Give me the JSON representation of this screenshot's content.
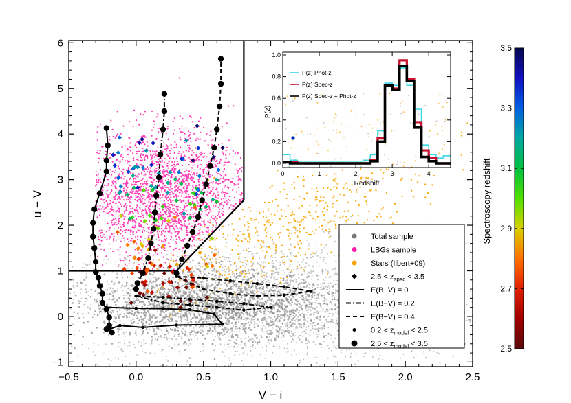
{
  "chart_data": {
    "type": "scatter",
    "main": {
      "xlabel": "V − i",
      "ylabel": "u − V",
      "xlim": [
        -0.5,
        2.5
      ],
      "ylim": [
        -1.1,
        6.05
      ],
      "xticks": [
        -0.5,
        0.0,
        0.5,
        1.0,
        1.5,
        2.0,
        2.5
      ],
      "xtick_labels": [
        "−0.5",
        "0.0",
        "0.5",
        "1.0",
        "1.5",
        "2.0",
        "2.5"
      ],
      "yticks": [
        -1,
        0,
        1,
        2,
        3,
        4,
        5,
        6
      ],
      "ytick_labels": [
        "−1",
        "0",
        "1",
        "2",
        "3",
        "4",
        "5",
        "6"
      ],
      "selection_box": [
        [
          -0.5,
          1.0
        ],
        [
          0.3,
          1.0
        ],
        [
          0.8,
          2.55
        ],
        [
          0.8,
          6.05
        ]
      ],
      "tracks": [
        {
          "name": "E(B−V) = 0",
          "style": "solid",
          "points": [
            [
              -0.22,
              -0.28
            ],
            [
              -0.18,
              -0.35
            ],
            [
              -0.2,
              -0.2
            ],
            [
              -0.2,
              -0.02
            ],
            [
              -0.22,
              0.16
            ],
            [
              -0.25,
              0.3
            ],
            [
              -0.25,
              0.5
            ],
            [
              -0.27,
              0.67
            ],
            [
              -0.28,
              0.85
            ],
            [
              -0.3,
              0.97
            ],
            [
              -0.3,
              1.2
            ],
            [
              -0.31,
              1.5
            ],
            [
              -0.32,
              1.75
            ],
            [
              -0.32,
              2.05
            ],
            [
              -0.31,
              2.35
            ],
            [
              -0.27,
              2.7
            ],
            [
              -0.22,
              3.18
            ],
            [
              -0.22,
              3.42
            ],
            [
              -0.21,
              3.75
            ],
            [
              -0.22,
              4.13
            ]
          ]
        },
        {
          "name": "E(B−V) = 0.2",
          "style": "dashdot",
          "points": [
            [
              0.0,
              0.6
            ],
            [
              0.01,
              0.73
            ],
            [
              0.05,
              0.95
            ],
            [
              0.09,
              1.28
            ],
            [
              0.11,
              1.6
            ],
            [
              0.13,
              1.92
            ],
            [
              0.14,
              2.28
            ],
            [
              0.15,
              2.65
            ],
            [
              0.17,
              3.05
            ],
            [
              0.18,
              3.55
            ],
            [
              0.2,
              4.1
            ],
            [
              0.21,
              4.5
            ],
            [
              0.21,
              4.88
            ]
          ]
        },
        {
          "name": "E(B−V) = 0.4",
          "style": "dashed",
          "points": [
            [
              0.3,
              0.95
            ],
            [
              0.34,
              1.25
            ],
            [
              0.38,
              1.55
            ],
            [
              0.42,
              1.85
            ],
            [
              0.46,
              2.18
            ],
            [
              0.49,
              2.55
            ],
            [
              0.52,
              2.9
            ],
            [
              0.55,
              3.3
            ],
            [
              0.58,
              3.7
            ],
            [
              0.6,
              4.1
            ],
            [
              0.62,
              4.6
            ],
            [
              0.63,
              5.1
            ],
            [
              0.63,
              5.65
            ]
          ]
        },
        {
          "name": "low-z tail (E=0)",
          "style": "solid",
          "points": [
            [
              -0.22,
              0.2
            ],
            [
              0.0,
              0.18
            ],
            [
              0.2,
              0.17
            ],
            [
              0.4,
              0.15
            ],
            [
              0.58,
              0.05
            ],
            [
              0.64,
              -0.17
            ],
            [
              0.3,
              -0.19
            ],
            [
              0.05,
              -0.24
            ],
            [
              -0.12,
              -0.2
            ],
            [
              -0.22,
              -0.3
            ]
          ]
        },
        {
          "name": "low-z tail (E=0.2)",
          "style": "dashdot",
          "points": [
            [
              0.0,
              0.45
            ],
            [
              0.2,
              0.42
            ],
            [
              0.4,
              0.38
            ],
            [
              0.6,
              0.33
            ],
            [
              0.8,
              0.28
            ],
            [
              1.0,
              0.2
            ],
            [
              0.8,
              0.14
            ],
            [
              0.6,
              0.2
            ],
            [
              0.4,
              0.25
            ],
            [
              0.2,
              0.3
            ],
            [
              0.0,
              0.45
            ]
          ]
        },
        {
          "name": "low-z tail (E=0.4)",
          "style": "dashed",
          "points": [
            [
              0.3,
              0.88
            ],
            [
              0.5,
              0.84
            ],
            [
              0.7,
              0.78
            ],
            [
              0.9,
              0.72
            ],
            [
              1.1,
              0.65
            ],
            [
              1.3,
              0.55
            ],
            [
              1.1,
              0.47
            ],
            [
              0.9,
              0.45
            ],
            [
              0.7,
              0.5
            ],
            [
              0.5,
              0.6
            ],
            [
              0.3,
              0.88
            ]
          ]
        }
      ],
      "big_dot_tracks": [
        0,
        1,
        2
      ],
      "small_dot_tracks": [
        3,
        4,
        5
      ],
      "clouds": [
        {
          "name": "Total sample",
          "color": "#8c8c8c",
          "count": 3200,
          "center": [
            0.95,
            0.3
          ],
          "spread": [
            0.75,
            0.65
          ],
          "radius": 1.0,
          "opacity": 0.55
        },
        {
          "name": "Total sample core",
          "color": "#6e6e6e",
          "count": 1600,
          "center": [
            0.55,
            0.25
          ],
          "spread": [
            0.45,
            0.35
          ],
          "radius": 1.3,
          "opacity": 0.6
        },
        {
          "name": "Stars (Ilbert+09)",
          "color": "#f7a600",
          "count": 550,
          "center": [
            1.15,
            1.55
          ],
          "spread": [
            0.6,
            1.0
          ],
          "radius": 1.2,
          "opacity": 0.9
        },
        {
          "name": "LBGs sample",
          "color": "#ff1aa9",
          "count": 2400,
          "center": [
            0.2,
            2.65
          ],
          "spread": [
            0.33,
            0.72
          ],
          "radius": 1.1,
          "opacity": 0.85
        }
      ],
      "spec_points": {
        "count": 140,
        "zmin": 2.5,
        "zmax": 3.5
      }
    },
    "inset": {
      "xlabel": "Redshift",
      "ylabel": "P(z)",
      "xlim": [
        0,
        4.6
      ],
      "ylim": [
        0,
        1.0
      ],
      "xticks": [
        0,
        1,
        2,
        3,
        4
      ],
      "yticks": [
        0.0,
        0.2,
        0.4,
        0.6,
        0.8,
        1.0
      ],
      "ytick_labels": [
        "0.0",
        "0.2",
        "0.4",
        "0.6",
        "0.8",
        "1.0"
      ],
      "bins": [
        0.0,
        0.2,
        0.4,
        0.6,
        0.8,
        1.0,
        1.2,
        1.4,
        1.6,
        1.8,
        2.0,
        2.2,
        2.4,
        2.6,
        2.8,
        3.0,
        3.2,
        3.4,
        3.6,
        3.8,
        4.0,
        4.2,
        4.4,
        4.6
      ],
      "series": [
        {
          "name": "P(z) Phot-z",
          "color": "#39d6e6",
          "values": [
            0.08,
            0.03,
            0.02,
            0.02,
            0.02,
            0.02,
            0.02,
            0.02,
            0.02,
            0.02,
            0.02,
            0.03,
            0.08,
            0.3,
            0.74,
            0.72,
            0.88,
            0.72,
            0.5,
            0.17,
            0.08,
            0.05,
            0.07
          ]
        },
        {
          "name": "P(z) Spec-z",
          "color": "#c8102e",
          "values": [
            0.01,
            0.01,
            0.0,
            0.0,
            0.0,
            0.0,
            0.0,
            0.0,
            0.0,
            0.0,
            0.0,
            0.0,
            0.03,
            0.23,
            0.72,
            0.69,
            0.95,
            0.78,
            0.38,
            0.12,
            0.05,
            0.0,
            0.0
          ]
        },
        {
          "name": "P(z) Spec-z + Phot-z",
          "color": "#000000",
          "values": [
            0.01,
            0.0,
            0.0,
            0.0,
            0.0,
            0.0,
            0.0,
            0.0,
            0.0,
            0.0,
            0.0,
            0.0,
            0.02,
            0.2,
            0.72,
            0.68,
            0.9,
            0.76,
            0.33,
            0.06,
            0.02,
            0.0,
            0.0
          ]
        }
      ]
    },
    "legend": {
      "entries": [
        {
          "label": "Total sample",
          "marker": "dot",
          "color": "#777777"
        },
        {
          "label": "LBGs sample",
          "marker": "dot",
          "color": "#ff1aa9"
        },
        {
          "label": "Stars (Ilbert+09)",
          "marker": "dot",
          "color": "#f7a600"
        },
        {
          "label": "2.5 < z",
          "sub": "spec",
          "tail": " < 3.5",
          "marker": "diamond",
          "color": "#000000"
        },
        {
          "label": "E(B−V) = 0",
          "marker": "solid",
          "color": "#000000"
        },
        {
          "label": "E(B−V) = 0.2",
          "marker": "dashdot",
          "color": "#000000"
        },
        {
          "label": "E(B−V) = 0.4",
          "marker": "dashed",
          "color": "#000000"
        },
        {
          "label": "0.2 < z",
          "sub": "model",
          "tail": " < 2.5",
          "marker": "smalldot",
          "color": "#000000"
        },
        {
          "label": "2.5 < z",
          "sub": "model",
          "tail": " < 3.5",
          "marker": "bigdot",
          "color": "#000000"
        }
      ],
      "placement": "bottom-right"
    },
    "colorbar": {
      "label": "Spectroscopy redshift",
      "range": [
        2.5,
        3.5
      ],
      "ticks": [
        2.5,
        2.7,
        2.9,
        3.1,
        3.3,
        3.5
      ],
      "tick_labels": [
        "2.5",
        "2.7",
        "2.9",
        "3.1",
        "3.3",
        "3.5"
      ],
      "colors": [
        "#5a0a0a",
        "#a00000",
        "#e02000",
        "#ff7000",
        "#d8d000",
        "#50e000",
        "#00c040",
        "#00a8a0",
        "#0060e0",
        "#1010c0",
        "#080850"
      ]
    }
  }
}
